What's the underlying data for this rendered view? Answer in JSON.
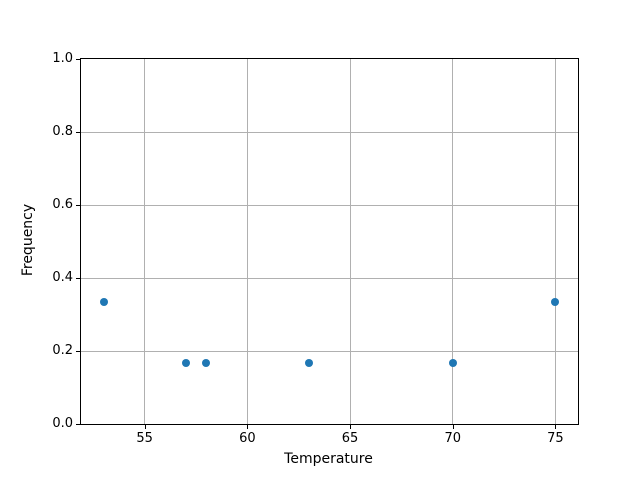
{
  "chart_data": {
    "type": "scatter",
    "title": "",
    "xlabel": "Temperature",
    "ylabel": "Frequency",
    "x": [
      53,
      57,
      58,
      63,
      70,
      75
    ],
    "y": [
      0.3333,
      0.1667,
      0.1667,
      0.1667,
      0.1667,
      0.3333
    ],
    "xlim": [
      51.9,
      76.1
    ],
    "ylim": [
      0.0,
      1.0
    ],
    "xticks": [
      55,
      60,
      65,
      70,
      75
    ],
    "yticks": [
      0.0,
      0.2,
      0.4,
      0.6,
      0.8,
      1.0
    ],
    "ytick_labels": [
      "0.0",
      "0.2",
      "0.4",
      "0.6",
      "0.8",
      "1.0"
    ],
    "xtick_labels": [
      "55",
      "60",
      "65",
      "70",
      "75"
    ],
    "grid": true,
    "legend": "none",
    "marker_color": "#1f77b4",
    "grid_color": "#b0b0b0",
    "axis_color": "#000000"
  }
}
